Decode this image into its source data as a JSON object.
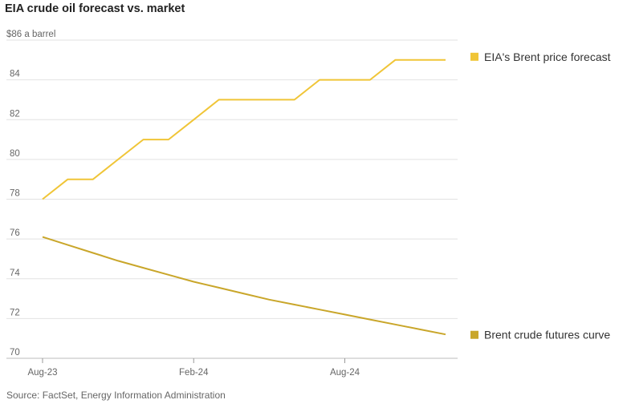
{
  "chart_data": {
    "type": "line",
    "title": "EIA crude oil forecast vs. market",
    "xlabel": "",
    "ylabel": "",
    "y_top_label": "$86 a barrel",
    "ylim": [
      70,
      86
    ],
    "yticks": [
      70,
      72,
      74,
      76,
      78,
      80,
      82,
      84
    ],
    "x": [
      "2023-08",
      "2023-09",
      "2023-10",
      "2023-11",
      "2023-12",
      "2024-01",
      "2024-02",
      "2024-03",
      "2024-04",
      "2024-05",
      "2024-06",
      "2024-07",
      "2024-08",
      "2024-09",
      "2024-10",
      "2024-11",
      "2024-12"
    ],
    "xticks": [
      {
        "x": "2023-08",
        "label": "Aug-23"
      },
      {
        "x": "2024-02",
        "label": "Feb-24"
      },
      {
        "x": "2024-08",
        "label": "Aug-24"
      }
    ],
    "grid": true,
    "legend_position": "right",
    "series": [
      {
        "name": "EIA's Brent price forecast",
        "color": "#f0c537",
        "values": [
          78,
          79,
          79,
          80,
          81,
          81,
          82,
          83,
          83,
          83,
          83,
          84,
          84,
          84,
          85,
          85,
          85
        ]
      },
      {
        "name": "Brent crude futures curve",
        "color": "#c9a62a",
        "values": [
          76.1,
          75.7,
          75.3,
          74.9,
          74.55,
          74.2,
          73.85,
          73.55,
          73.25,
          72.95,
          72.7,
          72.45,
          72.2,
          71.95,
          71.7,
          71.45,
          71.2
        ]
      }
    ]
  },
  "source": "Source: FactSet, Energy Information Administration"
}
